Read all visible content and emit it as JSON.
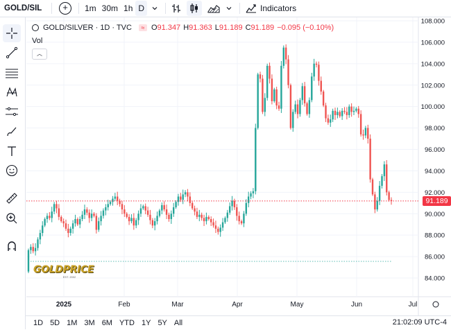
{
  "header": {
    "symbol": "GOLD/SIL",
    "intervals": [
      "1m",
      "30m",
      "1h",
      "D"
    ],
    "active_interval": "D",
    "indicators_label": "Indicators"
  },
  "legend": {
    "title": "GOLD/SILVER · 1D · TVC",
    "o_label": "O",
    "o_value": "91.347",
    "h_label": "H",
    "h_value": "91.363",
    "l_label": "L",
    "l_value": "91.189",
    "c_label": "C",
    "c_value": "91.189",
    "change": "−0.095 (−0.10%)",
    "vol_label": "Vol",
    "collapse_icon": "chevron-up-icon"
  },
  "price_tag": "91.189",
  "watermark": {
    "text": "GOLDPRICE",
    "sub": "EST. 2002"
  },
  "bottom": {
    "ranges": [
      "1D",
      "5D",
      "1M",
      "3M",
      "6M",
      "YTD",
      "1Y",
      "5Y",
      "All"
    ],
    "clock": "21:02:09 UTC-4"
  },
  "colors": {
    "up": "#26a69a",
    "down": "#ef5350",
    "grid": "#f0f3fa",
    "price_line": "#f23645"
  },
  "left_tools": [
    "crosshair-icon",
    "trend-line-icon",
    "fib-icon",
    "pattern-icon",
    "forecast-icon",
    "brush-icon",
    "text-icon",
    "emoji-icon",
    "ruler-icon",
    "zoom-in-icon",
    "magnet-icon"
  ],
  "chart_data": {
    "type": "candlestick",
    "y_ticks": [
      "108.000",
      "106.000",
      "104.000",
      "102.000",
      "100.000",
      "98.000",
      "96.000",
      "94.000",
      "92.000",
      "90.000",
      "88.000",
      "86.000",
      "84.000"
    ],
    "x_ticks": [
      "2025",
      "Feb",
      "Mar",
      "Apr",
      "May",
      "Jun",
      "Jul"
    ],
    "ylim": [
      83,
      109
    ],
    "last_price": 91.189,
    "closes": [
      86.6,
      86.9,
      86.5,
      86.8,
      87.6,
      88.2,
      88.9,
      89.5,
      89.8,
      89.6,
      90.2,
      90.9,
      90.5,
      89.7,
      89.3,
      89.1,
      88.6,
      88.2,
      88.6,
      89.1,
      89.5,
      89.0,
      89.5,
      89.9,
      90.4,
      90.1,
      89.6,
      90.0,
      89.8,
      88.5,
      89.3,
      89.8,
      90.3,
      90.6,
      90.9,
      91.1,
      91.4,
      91.6,
      91.2,
      90.9,
      90.4,
      90.0,
      89.7,
      89.3,
      89.6,
      88.9,
      89.4,
      90.0,
      90.5,
      90.7,
      90.3,
      89.9,
      89.4,
      88.9,
      89.3,
      89.8,
      90.3,
      90.8,
      90.4,
      89.9,
      89.5,
      90.0,
      90.6,
      91.1,
      91.6,
      91.3,
      91.8,
      92.0,
      91.6,
      91.0,
      90.5,
      90.2,
      89.7,
      89.9,
      89.6,
      89.3,
      89.7,
      89.5,
      89.2,
      88.9,
      88.6,
      88.3,
      88.7,
      89.2,
      89.6,
      90.1,
      90.7,
      91.2,
      90.6,
      89.8,
      89.3,
      89.1,
      90.0,
      91.0,
      91.6,
      91.9,
      92.1,
      98.0,
      103.0,
      102.6,
      99.5,
      100.8,
      103.8,
      102.6,
      100.5,
      101.6,
      100.1,
      99.8,
      103.8,
      105.5,
      104.4,
      102.0,
      98.0,
      99.5,
      100.2,
      99.3,
      100.6,
      101.9,
      100.3,
      99.3,
      100.6,
      102.8,
      104.0,
      103.9,
      102.4,
      101.4,
      100.1,
      98.9,
      98.5,
      98.8,
      99.6,
      99.2,
      99.5,
      99.1,
      99.6,
      99.5,
      99.2,
      100.0,
      99.5,
      99.6,
      99.8,
      99.3,
      97.4,
      97.3,
      98.0,
      97.0,
      93.2,
      91.8,
      90.4,
      91.2,
      92.6,
      93.5,
      94.6,
      92.0,
      91.28,
      91.189
    ]
  }
}
